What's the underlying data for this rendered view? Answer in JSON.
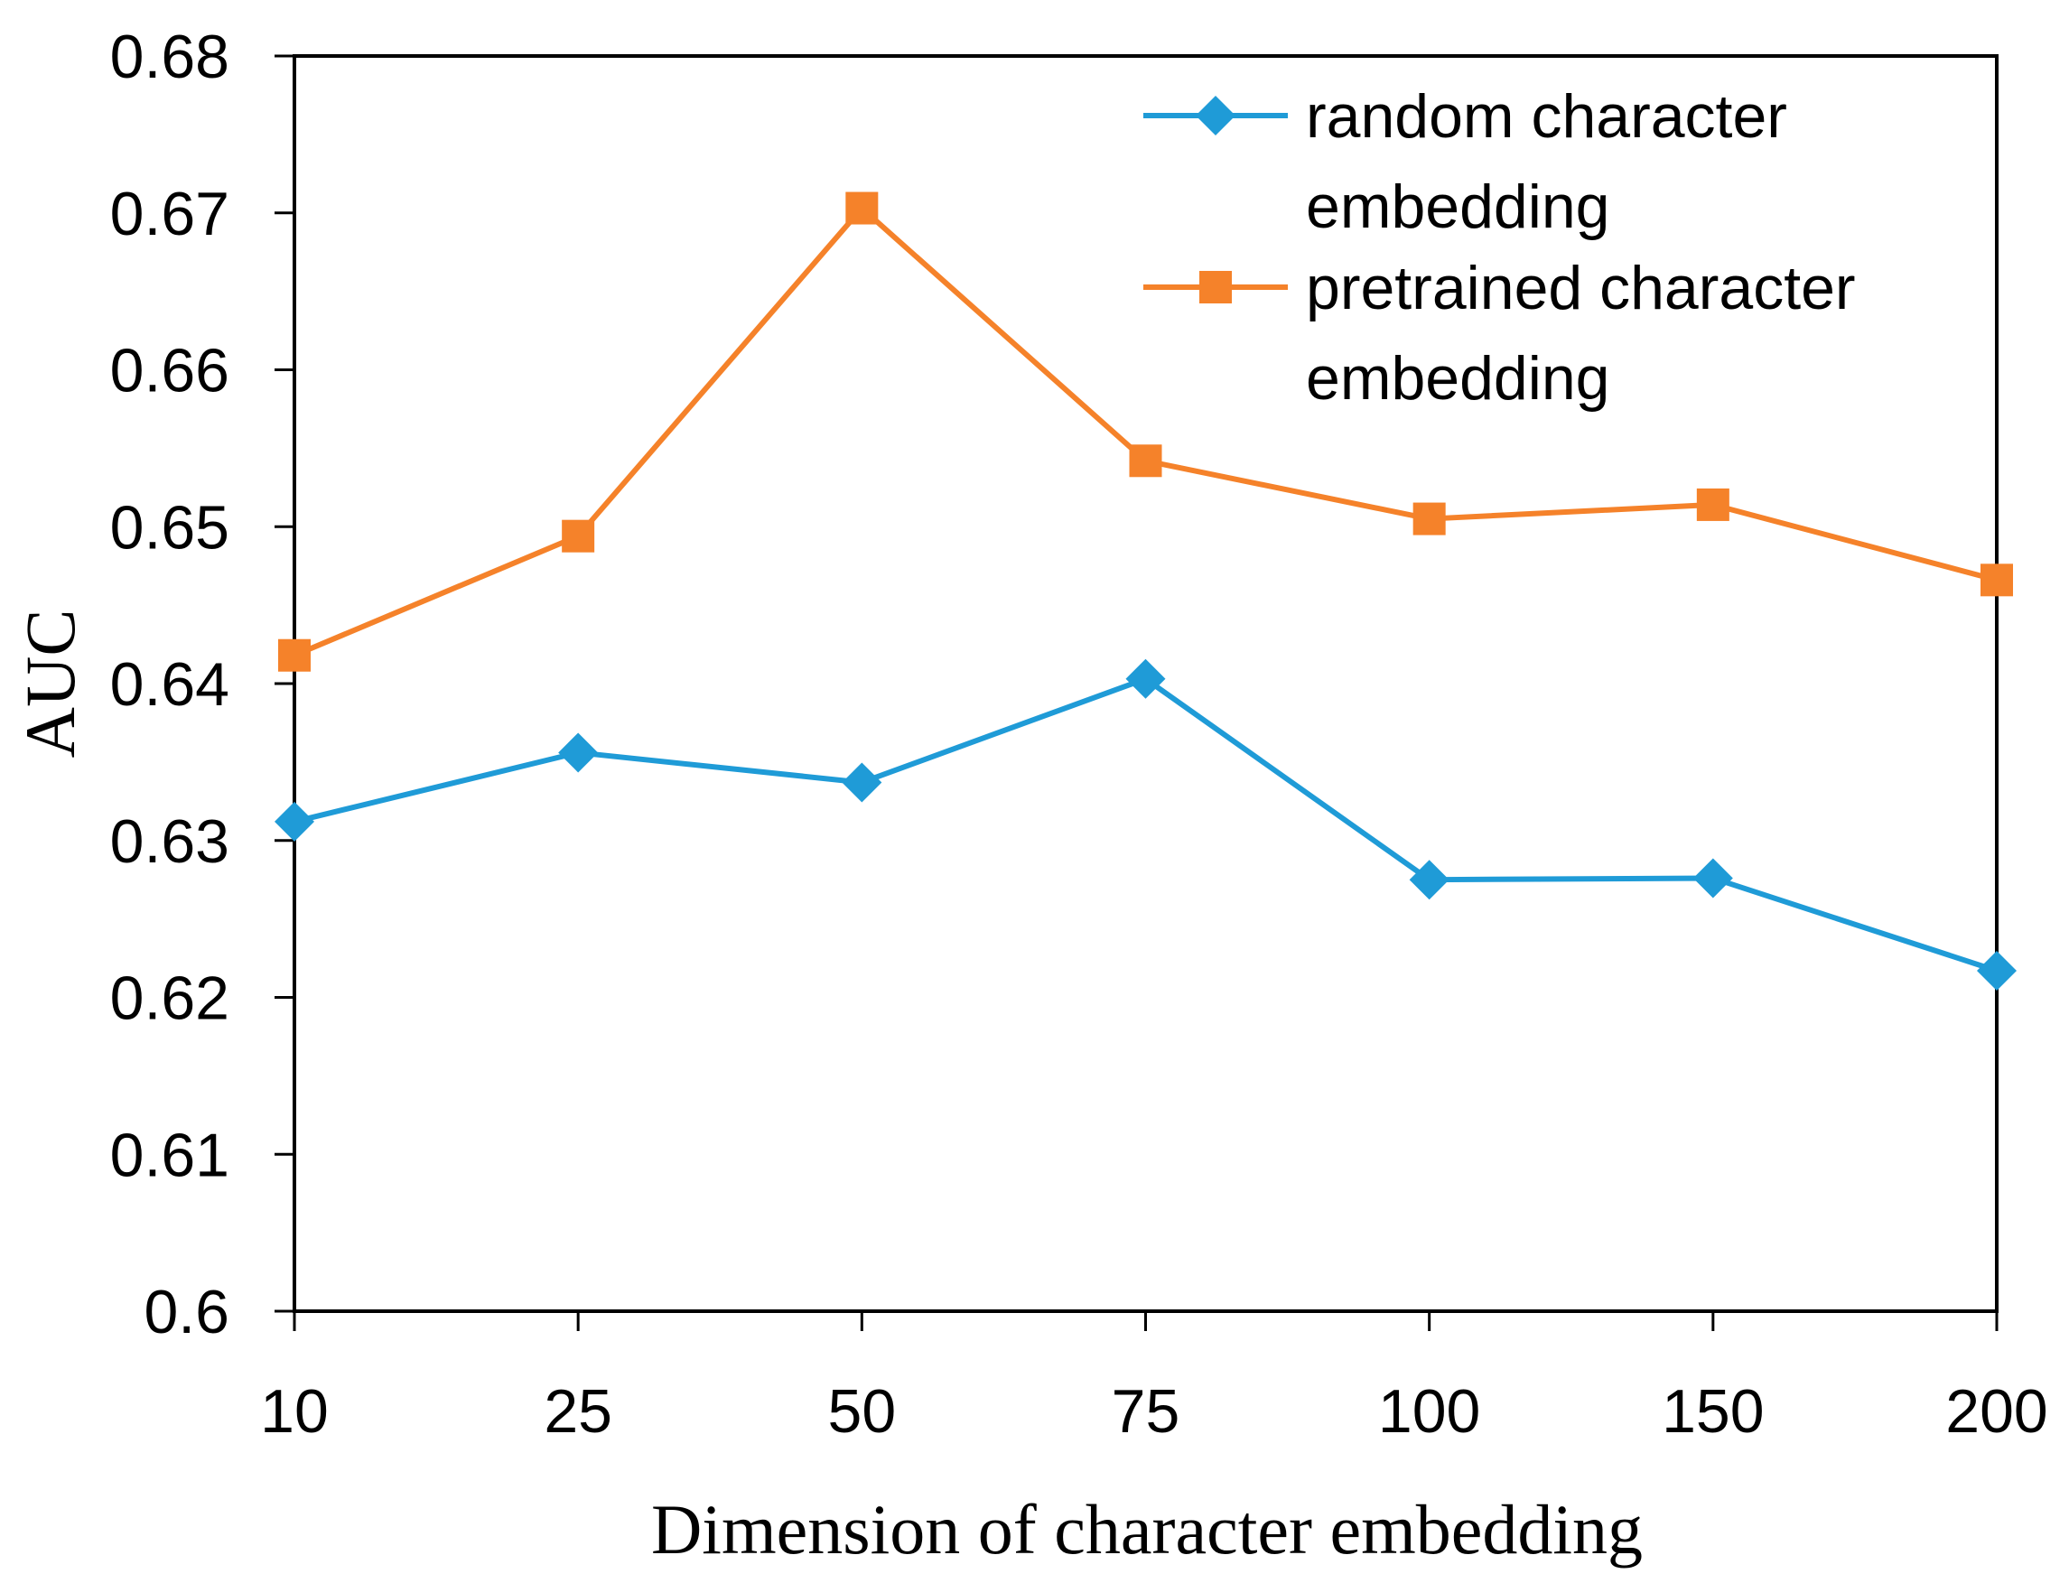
{
  "chart_data": {
    "type": "line",
    "title": "",
    "xlabel": "Dimension of character embedding",
    "ylabel": "AUC",
    "categories": [
      "10",
      "25",
      "50",
      "75",
      "100",
      "150",
      "200"
    ],
    "ylim": [
      0.6,
      0.68
    ],
    "yticks": [
      "0.6",
      "0.61",
      "0.62",
      "0.63",
      "0.64",
      "0.65",
      "0.66",
      "0.67",
      "0.68"
    ],
    "grid": false,
    "legend_position": "top-right",
    "series": [
      {
        "name_lines": [
          "random character",
          "embedding"
        ],
        "color": "#1f9bd7",
        "marker": "diamond",
        "values": [
          0.6312,
          0.6356,
          0.6337,
          0.6403,
          0.6275,
          0.6276,
          0.6217
        ]
      },
      {
        "name_lines": [
          "pretrained character",
          "embedding"
        ],
        "color": "#f5822a",
        "marker": "square",
        "values": [
          0.6418,
          0.6494,
          0.6703,
          0.6542,
          0.6505,
          0.6514,
          0.6466
        ]
      }
    ]
  }
}
